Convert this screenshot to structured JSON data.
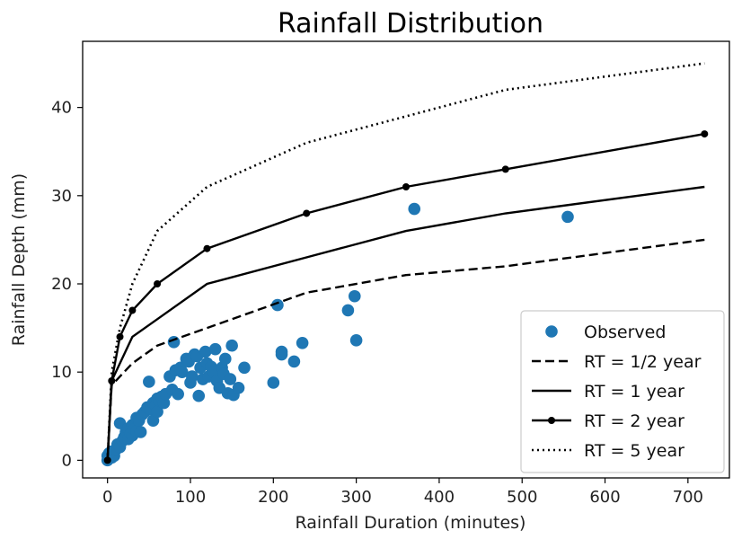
{
  "chart_data": {
    "type": "scatter",
    "title": "Rainfall Distribution",
    "xlabel": "Rainfall Duration (minutes)",
    "ylabel": "Rainfall Depth (mm)",
    "xlim": [
      -30,
      750
    ],
    "ylim": [
      -2,
      47.5
    ],
    "xticks": [
      0,
      100,
      200,
      300,
      400,
      500,
      600,
      700
    ],
    "yticks": [
      0,
      10,
      20,
      30,
      40
    ],
    "grid": false,
    "legend_position": "lower-right",
    "colors": {
      "observed": "#1f77b4",
      "lines": "#000000"
    },
    "series": [
      {
        "name": "Observed",
        "kind": "scatter",
        "points": [
          [
            0,
            0
          ],
          [
            0,
            0.5
          ],
          [
            2,
            0.8
          ],
          [
            5,
            0.3
          ],
          [
            5,
            1
          ],
          [
            8,
            0.5
          ],
          [
            10,
            1.2
          ],
          [
            12,
            1.8
          ],
          [
            15,
            4.2
          ],
          [
            15,
            1.5
          ],
          [
            18,
            2.2
          ],
          [
            20,
            2.6
          ],
          [
            22,
            3.2
          ],
          [
            25,
            2.4
          ],
          [
            25,
            3.6
          ],
          [
            28,
            3.0
          ],
          [
            30,
            2.8
          ],
          [
            30,
            4.0
          ],
          [
            32,
            3.5
          ],
          [
            35,
            4.8
          ],
          [
            35,
            3.3
          ],
          [
            38,
            4.5
          ],
          [
            40,
            3.2
          ],
          [
            42,
            5.2
          ],
          [
            45,
            5.5
          ],
          [
            48,
            6.0
          ],
          [
            50,
            8.9
          ],
          [
            52,
            5.8
          ],
          [
            55,
            4.5
          ],
          [
            55,
            6.5
          ],
          [
            58,
            6.2
          ],
          [
            60,
            5.5
          ],
          [
            60,
            7.0
          ],
          [
            62,
            6.8
          ],
          [
            65,
            7.2
          ],
          [
            68,
            6.5
          ],
          [
            70,
            7.5
          ],
          [
            75,
            9.5
          ],
          [
            78,
            8.0
          ],
          [
            80,
            13.4
          ],
          [
            82,
            10.2
          ],
          [
            85,
            7.5
          ],
          [
            88,
            10.5
          ],
          [
            90,
            10.0
          ],
          [
            95,
            11.5
          ],
          [
            98,
            11.2
          ],
          [
            100,
            8.8
          ],
          [
            102,
            9.5
          ],
          [
            105,
            12.0
          ],
          [
            108,
            11.8
          ],
          [
            110,
            7.3
          ],
          [
            112,
            10.5
          ],
          [
            115,
            9.2
          ],
          [
            118,
            12.3
          ],
          [
            120,
            11.0
          ],
          [
            122,
            9.5
          ],
          [
            125,
            10.6
          ],
          [
            128,
            10.0
          ],
          [
            130,
            12.6
          ],
          [
            132,
            9.0
          ],
          [
            135,
            8.2
          ],
          [
            138,
            10.5
          ],
          [
            140,
            9.8
          ],
          [
            142,
            11.5
          ],
          [
            145,
            7.6
          ],
          [
            148,
            9.2
          ],
          [
            150,
            13.0
          ],
          [
            152,
            7.4
          ],
          [
            158,
            8.2
          ],
          [
            165,
            10.5
          ],
          [
            200,
            8.8
          ],
          [
            205,
            17.6
          ],
          [
            210,
            12.3
          ],
          [
            210,
            12.0
          ],
          [
            225,
            11.2
          ],
          [
            235,
            13.3
          ],
          [
            290,
            17.0
          ],
          [
            298,
            18.6
          ],
          [
            300,
            13.6
          ],
          [
            370,
            28.5
          ],
          [
            555,
            27.6
          ]
        ]
      },
      {
        "name": "RT = 1/2 year",
        "kind": "line",
        "dash": "dashed",
        "points": [
          [
            0,
            0
          ],
          [
            5,
            8.5
          ],
          [
            30,
            11
          ],
          [
            60,
            13
          ],
          [
            120,
            15
          ],
          [
            240,
            19
          ],
          [
            360,
            21
          ],
          [
            480,
            22
          ],
          [
            720,
            25
          ]
        ]
      },
      {
        "name": "RT = 1 year",
        "kind": "line",
        "dash": "solid",
        "points": [
          [
            0,
            0
          ],
          [
            5,
            9
          ],
          [
            30,
            14
          ],
          [
            60,
            16
          ],
          [
            120,
            20
          ],
          [
            240,
            23
          ],
          [
            360,
            26
          ],
          [
            480,
            28
          ],
          [
            720,
            31
          ]
        ]
      },
      {
        "name": "RT = 2 year",
        "kind": "line-markers",
        "dash": "solid",
        "points": [
          [
            0,
            0
          ],
          [
            5,
            9
          ],
          [
            15,
            14
          ],
          [
            30,
            17
          ],
          [
            60,
            20
          ],
          [
            120,
            24
          ],
          [
            240,
            28
          ],
          [
            360,
            31
          ],
          [
            480,
            33
          ],
          [
            720,
            37
          ]
        ]
      },
      {
        "name": "RT = 5 year",
        "kind": "line",
        "dash": "dotted",
        "points": [
          [
            0,
            0
          ],
          [
            5,
            10
          ],
          [
            15,
            15
          ],
          [
            30,
            20
          ],
          [
            60,
            26
          ],
          [
            120,
            31
          ],
          [
            240,
            36
          ],
          [
            360,
            39
          ],
          [
            480,
            42
          ],
          [
            720,
            45
          ]
        ]
      }
    ]
  }
}
